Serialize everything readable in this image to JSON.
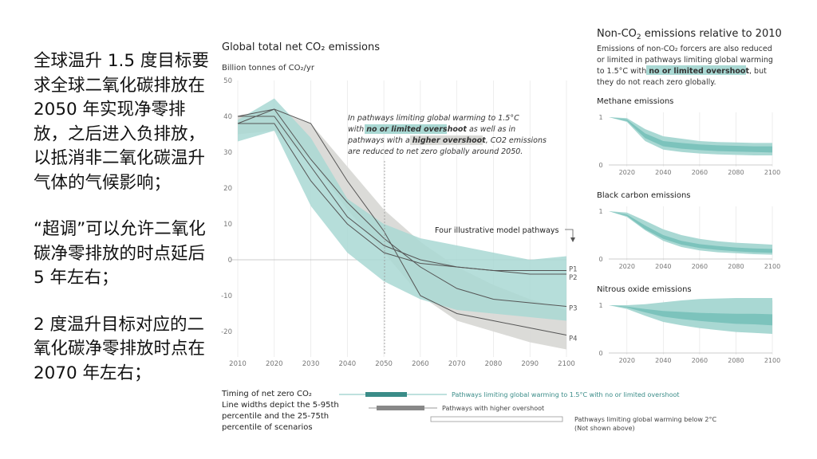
{
  "left_text": {
    "p1": "全球温升 1.5 度目标要求全球二氧化碳排放在 2050 年实现净零排放，之后进入负排放，以抵消非二氧化碳温升气体的气候影响；",
    "p2": "“超调”可以允许二氧化碳净零排放的时点延后 5 年左右；",
    "p3": "2 度温升目标对应的二氧化碳净零排放时点在 2070 年左右；"
  },
  "colors": {
    "teal_light": "#a9d8d3",
    "teal_mid": "#7cc3bc",
    "teal_dark": "#3a8c88",
    "grey_band": "#d9d9d6",
    "line_grey": "#555555"
  },
  "chart_data": [
    {
      "type": "area",
      "title": "Global total net CO₂ emissions",
      "ylabel": "Billion tonnes of CO₂/yr",
      "xlabel": "",
      "ylim": [
        -25,
        50
      ],
      "xlim": [
        2010,
        2100
      ],
      "x_ticks": [
        2010,
        2020,
        2030,
        2040,
        2050,
        2060,
        2070,
        2080,
        2090,
        2100
      ],
      "y_ticks": [
        50,
        40,
        30,
        20,
        10,
        0,
        -10,
        -20
      ],
      "annotation": {
        "l1": "In pathways limiting global warming to 1.5°C",
        "l2a": "with ",
        "l2b": "no or limited overshoot",
        "l2c": " as well as in",
        "l3a": "pathways with a ",
        "l3b": "higher overshoot",
        "l3c": ", CO2 emissions",
        "l4": "are reduced to net zero globally around 2050."
      },
      "pathways_label": "Four illustrative model pathways",
      "bands": [
        {
          "name": "Pathways with higher overshoot (5–95th percentile)",
          "x": [
            2010,
            2020,
            2030,
            2040,
            2050,
            2060,
            2070,
            2080,
            2090,
            2100
          ],
          "upper": [
            40,
            42,
            38,
            26,
            14,
            5,
            -2,
            -7,
            -11,
            -14
          ],
          "lower": [
            35,
            36,
            28,
            14,
            2,
            -10,
            -17,
            -20,
            -23,
            -25
          ]
        },
        {
          "name": "Pathways with no or limited overshoot (5–95th percentile)",
          "x": [
            2010,
            2020,
            2030,
            2040,
            2050,
            2060,
            2070,
            2080,
            2090,
            2100
          ],
          "upper": [
            39,
            45,
            34,
            17,
            10,
            6,
            4,
            2,
            0,
            1
          ],
          "lower": [
            33,
            36,
            15,
            2,
            -6,
            -11,
            -14,
            -15,
            -16,
            -17
          ]
        }
      ],
      "series": [
        {
          "name": "P1",
          "x": [
            2010,
            2020,
            2030,
            2040,
            2050,
            2060,
            2070,
            2080,
            2090,
            2100
          ],
          "values": [
            38,
            38,
            22,
            10,
            2,
            -1,
            -2,
            -3,
            -3,
            -3
          ]
        },
        {
          "name": "P2",
          "x": [
            2010,
            2020,
            2030,
            2040,
            2050,
            2060,
            2070,
            2080,
            2090,
            2100
          ],
          "values": [
            40,
            40,
            26,
            12,
            4,
            0,
            -2,
            -3,
            -4,
            -4
          ]
        },
        {
          "name": "P3",
          "x": [
            2010,
            2020,
            2030,
            2040,
            2050,
            2060,
            2070,
            2080,
            2090,
            2100
          ],
          "values": [
            38,
            42,
            28,
            16,
            6,
            -2,
            -8,
            -11,
            -12,
            -13
          ]
        },
        {
          "name": "P4",
          "x": [
            2010,
            2020,
            2030,
            2040,
            2050,
            2060,
            2070,
            2080,
            2090,
            2100
          ],
          "values": [
            40,
            42,
            38,
            22,
            8,
            -10,
            -15,
            -17,
            -19,
            -21
          ]
        }
      ]
    },
    {
      "type": "area",
      "title": "Methane emissions",
      "ylim": [
        0,
        1
      ],
      "xlim": [
        2010,
        2100
      ],
      "x_ticks": [
        2020,
        2040,
        2060,
        2080,
        2100
      ],
      "y_ticks": [
        1,
        0
      ],
      "x": [
        2010,
        2020,
        2030,
        2040,
        2050,
        2060,
        2070,
        2080,
        2090,
        2100
      ],
      "outer_upper": [
        1,
        0.98,
        0.75,
        0.6,
        0.55,
        0.5,
        0.48,
        0.47,
        0.46,
        0.46
      ],
      "outer_lower": [
        1,
        0.9,
        0.5,
        0.32,
        0.27,
        0.24,
        0.22,
        0.21,
        0.2,
        0.2
      ],
      "inner_upper": [
        1,
        0.95,
        0.66,
        0.5,
        0.46,
        0.43,
        0.41,
        0.4,
        0.39,
        0.39
      ],
      "inner_lower": [
        1,
        0.92,
        0.56,
        0.39,
        0.34,
        0.31,
        0.29,
        0.28,
        0.27,
        0.26
      ]
    },
    {
      "type": "area",
      "title": "Black carbon emissions",
      "ylim": [
        0,
        1
      ],
      "xlim": [
        2010,
        2100
      ],
      "x_ticks": [
        2020,
        2040,
        2060,
        2080,
        2100
      ],
      "y_ticks": [
        1,
        0
      ],
      "x": [
        2010,
        2020,
        2030,
        2040,
        2050,
        2060,
        2070,
        2080,
        2090,
        2100
      ],
      "outer_upper": [
        1,
        0.97,
        0.8,
        0.62,
        0.5,
        0.42,
        0.37,
        0.34,
        0.32,
        0.3
      ],
      "outer_lower": [
        1,
        0.88,
        0.6,
        0.38,
        0.25,
        0.18,
        0.14,
        0.12,
        0.1,
        0.09
      ],
      "inner_upper": [
        1,
        0.93,
        0.7,
        0.5,
        0.38,
        0.31,
        0.27,
        0.24,
        0.22,
        0.21
      ],
      "inner_lower": [
        1,
        0.9,
        0.62,
        0.42,
        0.3,
        0.23,
        0.19,
        0.16,
        0.14,
        0.13
      ]
    },
    {
      "type": "area",
      "title": "Nitrous oxide emissions",
      "ylim": [
        0,
        1
      ],
      "xlim": [
        2010,
        2100
      ],
      "x_ticks": [
        2020,
        2040,
        2060,
        2080,
        2100
      ],
      "y_ticks": [
        1,
        0
      ],
      "x": [
        2010,
        2020,
        2030,
        2040,
        2050,
        2060,
        2070,
        2080,
        2090,
        2100
      ],
      "outer_upper": [
        1,
        1.0,
        1.02,
        1.06,
        1.1,
        1.13,
        1.14,
        1.15,
        1.15,
        1.15
      ],
      "outer_lower": [
        1,
        0.92,
        0.78,
        0.65,
        0.58,
        0.52,
        0.48,
        0.44,
        0.42,
        0.4
      ],
      "inner_upper": [
        1,
        0.97,
        0.92,
        0.88,
        0.86,
        0.84,
        0.83,
        0.82,
        0.82,
        0.81
      ],
      "inner_lower": [
        1,
        0.95,
        0.85,
        0.76,
        0.71,
        0.67,
        0.64,
        0.61,
        0.6,
        0.58
      ]
    }
  ],
  "non_co2": {
    "title_a": "Non-CO",
    "title_b": "2",
    "title_c": " emissions relative to 2010",
    "desc_l1": "Emissions of non-CO₂ forcers are also reduced",
    "desc_l2": "or limited in pathways limiting global warming",
    "desc_l3a": "to 1.5°C with ",
    "desc_l3b": "no or limited overshoot",
    "desc_l3c": ", but",
    "desc_l4": "they do not reach zero globally."
  },
  "legend": {
    "title": "Timing of net zero CO₂",
    "sub1": "Line widths depict the 5-95th",
    "sub2": "percentile and the 25-75th",
    "sub3": "percentile of scenarios",
    "item1": "Pathways limiting global warming to 1.5°C with no or limited overshoot",
    "item2": "Pathways with higher overshoot",
    "item3a": "Pathways limiting global warming below 2°C",
    "item3b": "(Not shown above)"
  }
}
